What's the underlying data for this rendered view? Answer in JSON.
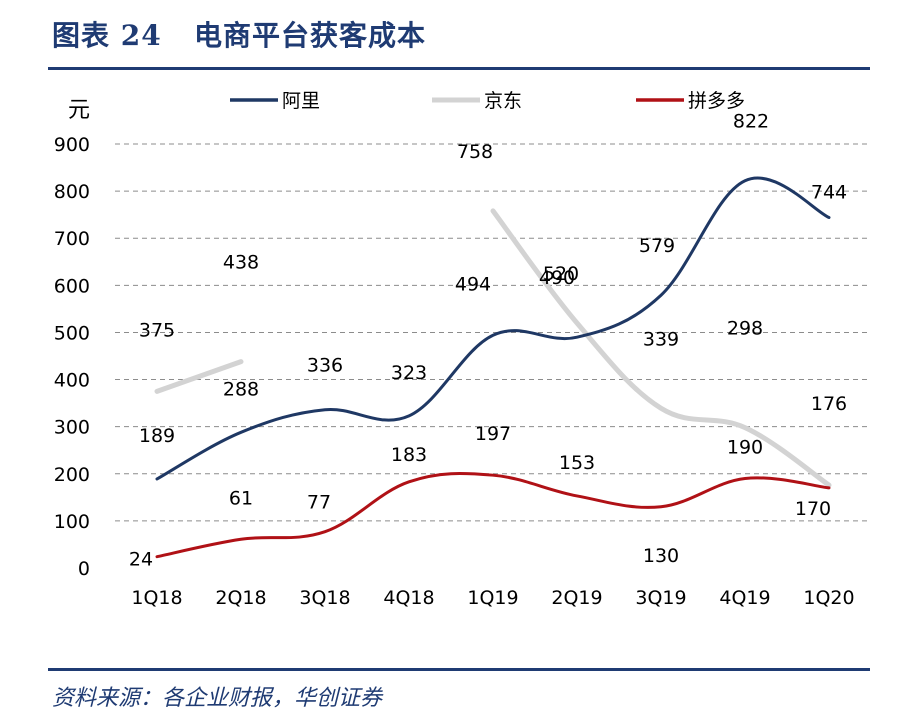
{
  "header": {
    "title": "图表 24   电商平台获客成本"
  },
  "footer": {
    "source": "资料来源：各企业财报，华创证券"
  },
  "colors": {
    "alibaba": "#1f3864",
    "jd": "#d3d3d3",
    "pdd": "#b01116",
    "grid": "#8c8c8c",
    "accent": "#1f3b73"
  },
  "chart_data": {
    "type": "line",
    "title": "",
    "ylabel": "元",
    "xlabel": "",
    "categories": [
      "1Q18",
      "2Q18",
      "3Q18",
      "4Q18",
      "1Q19",
      "2Q19",
      "3Q19",
      "4Q19",
      "1Q20"
    ],
    "ylim": [
      0,
      900
    ],
    "yticks": [
      0,
      100,
      200,
      300,
      400,
      500,
      600,
      700,
      800,
      900
    ],
    "grid": "horizontal-dashed",
    "legend_position": "top",
    "series": [
      {
        "name": "阿里",
        "values": [
          189,
          288,
          336,
          323,
          494,
          490,
          579,
          822,
          744
        ]
      },
      {
        "name": "京东",
        "values": [
          375,
          438,
          null,
          null,
          758,
          520,
          339,
          298,
          176
        ]
      },
      {
        "name": "拼多多",
        "values": [
          24,
          61,
          77,
          183,
          197,
          153,
          130,
          190,
          170
        ]
      }
    ]
  }
}
